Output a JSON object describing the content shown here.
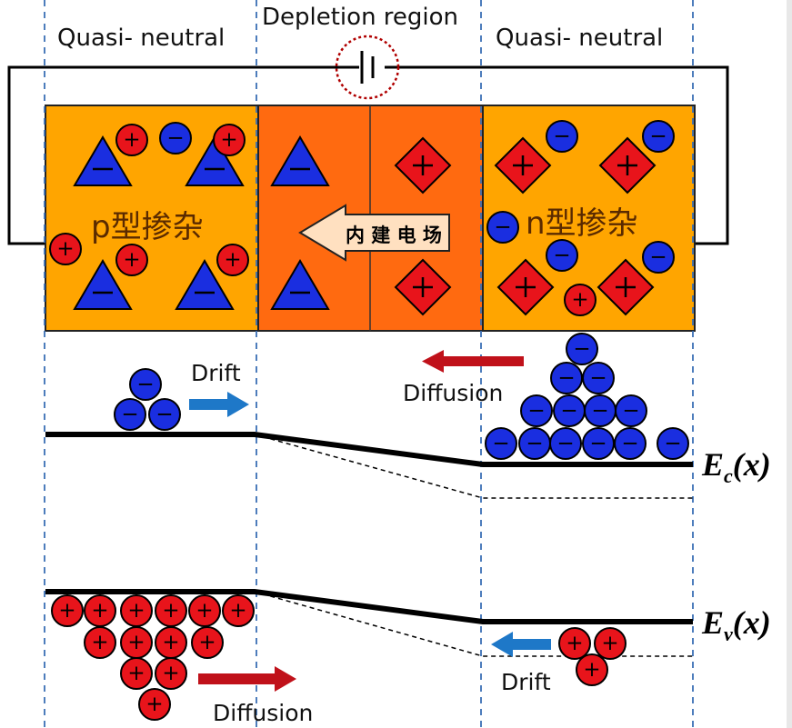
{
  "labels": {
    "left_region": "Quasi- neutral",
    "middle_region": "Depletion region",
    "right_region": "Quasi- neutral",
    "p_doping": "p型掺杂",
    "n_doping": "n型掺杂",
    "built_in_field": "内 建 电 场",
    "drift_top": "Drift",
    "diffusion_top": "Diffusion",
    "drift_bottom": "Drift",
    "diffusion_bottom": "Diffusion",
    "ec": "E",
    "ec_sub": "c",
    "ec_arg": "(x)",
    "ev": "E",
    "ev_sub": "v",
    "ev_arg": "(x)",
    "plus": "+",
    "minus": "−"
  },
  "colors": {
    "p_region": "#ffa500",
    "depletion_region": "#ff6a10",
    "n_region": "#ffa500",
    "electron": "#1a2ee0",
    "hole": "#e8141b",
    "drift_arrow": "#1e78c8",
    "diffusion_arrow": "#c0111a",
    "guide_line": "#3a6fb5",
    "battery_circle": "#b00000"
  },
  "icons": {
    "battery": "battery-icon",
    "acceptor": "acceptor-ion-triangle",
    "donor": "donor-ion-diamond",
    "electron": "electron-circle",
    "hole": "hole-circle"
  }
}
